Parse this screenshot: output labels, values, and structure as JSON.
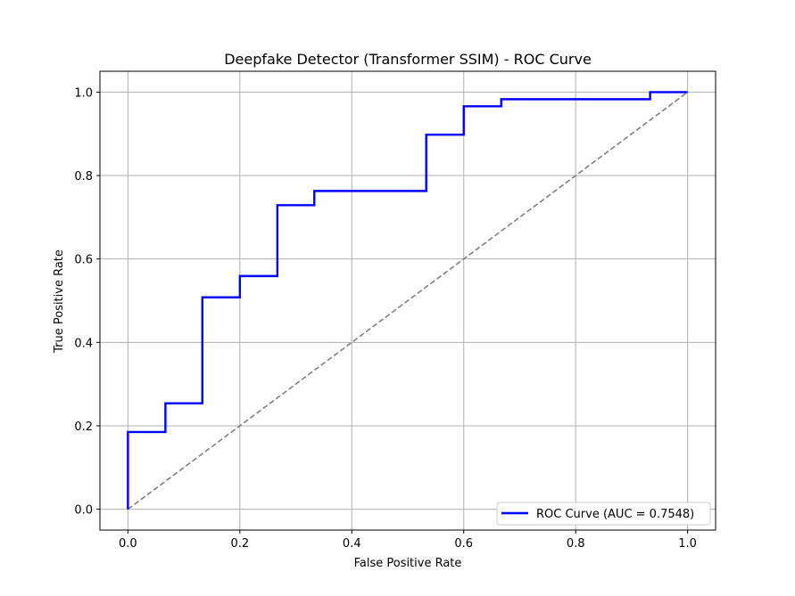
{
  "chart_data": {
    "type": "line",
    "title": "Deepfake Detector (Transformer SSIM) - ROC Curve",
    "xlabel": "False Positive Rate",
    "ylabel": "True Positive Rate",
    "xlim": [
      -0.05,
      1.05
    ],
    "ylim": [
      -0.05,
      1.05
    ],
    "xticks": [
      "0.0",
      "0.2",
      "0.4",
      "0.6",
      "0.8",
      "1.0"
    ],
    "yticks": [
      "0.0",
      "0.2",
      "0.4",
      "0.6",
      "0.8",
      "1.0"
    ],
    "xtick_values": [
      0.0,
      0.2,
      0.4,
      0.6,
      0.8,
      1.0
    ],
    "ytick_values": [
      0.0,
      0.2,
      0.4,
      0.6,
      0.8,
      1.0
    ],
    "grid": true,
    "legend_position": "lower-right",
    "series": [
      {
        "name": "ROC Curve (AUC = 0.7548)",
        "color": "#0000ff",
        "style": "solid",
        "x": [
          0.0,
          0.0,
          0.067,
          0.067,
          0.133,
          0.133,
          0.2,
          0.2,
          0.267,
          0.267,
          0.333,
          0.333,
          0.533,
          0.533,
          0.6,
          0.6,
          0.667,
          0.667,
          0.933,
          0.933,
          1.0
        ],
        "y": [
          0.0,
          0.185,
          0.185,
          0.254,
          0.254,
          0.508,
          0.508,
          0.559,
          0.559,
          0.729,
          0.729,
          0.763,
          0.763,
          0.898,
          0.898,
          0.966,
          0.966,
          0.983,
          0.983,
          1.0,
          1.0
        ]
      },
      {
        "color": "#808080",
        "style": "dashed",
        "x": [
          0.0,
          1.0
        ],
        "y": [
          0.0,
          1.0
        ]
      }
    ]
  }
}
